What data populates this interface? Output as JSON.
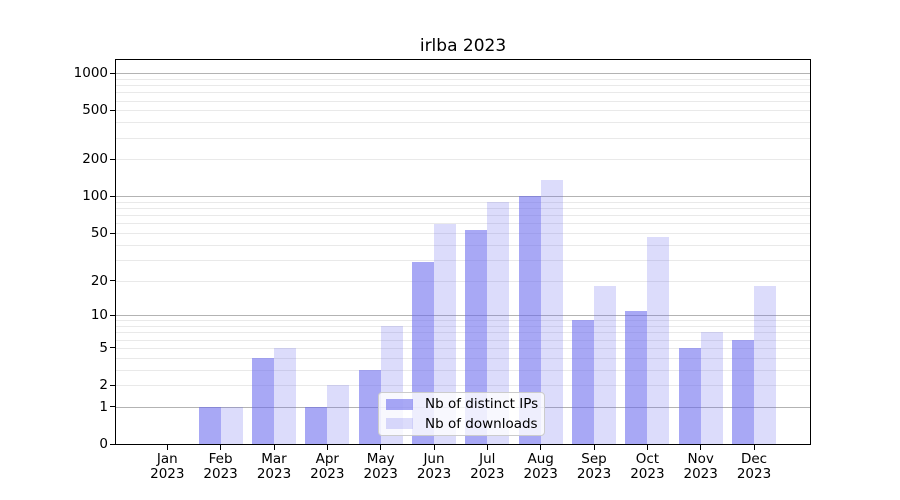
{
  "chart_data": {
    "type": "bar",
    "title": "irlba 2023",
    "categories": [
      "Jan 2023",
      "Feb 2023",
      "Mar 2023",
      "Apr 2023",
      "May 2023",
      "Jun 2023",
      "Jul 2023",
      "Aug 2023",
      "Sep 2023",
      "Oct 2023",
      "Nov 2023",
      "Dec 2023"
    ],
    "series": [
      {
        "name": "Nb of distinct IPs",
        "color": "rgba(102,102,238,0.57)",
        "values": [
          0,
          1,
          4,
          1,
          3,
          29,
          53,
          100,
          9,
          11,
          5,
          6
        ]
      },
      {
        "name": "Nb of downloads",
        "color": "rgba(102,102,238,0.23)",
        "values": [
          0,
          1,
          5,
          2,
          8,
          59,
          90,
          135,
          18,
          46,
          7,
          18
        ]
      }
    ],
    "xlabel": "",
    "ylabel": "",
    "yscale": "log1p",
    "ylim": [
      0,
      1280
    ],
    "yticks": [
      0,
      1,
      2,
      5,
      10,
      20,
      50,
      100,
      200,
      500,
      1000
    ],
    "grid": true,
    "legend_position": "lower center",
    "colors": {
      "major_grid": "#b3b3b3",
      "minor_grid": "#e9e9e9",
      "spine": "#000000",
      "text": "#000000",
      "legend_border": "#cccccc",
      "legend_bg": "rgba(255,255,255,0.8)"
    }
  }
}
